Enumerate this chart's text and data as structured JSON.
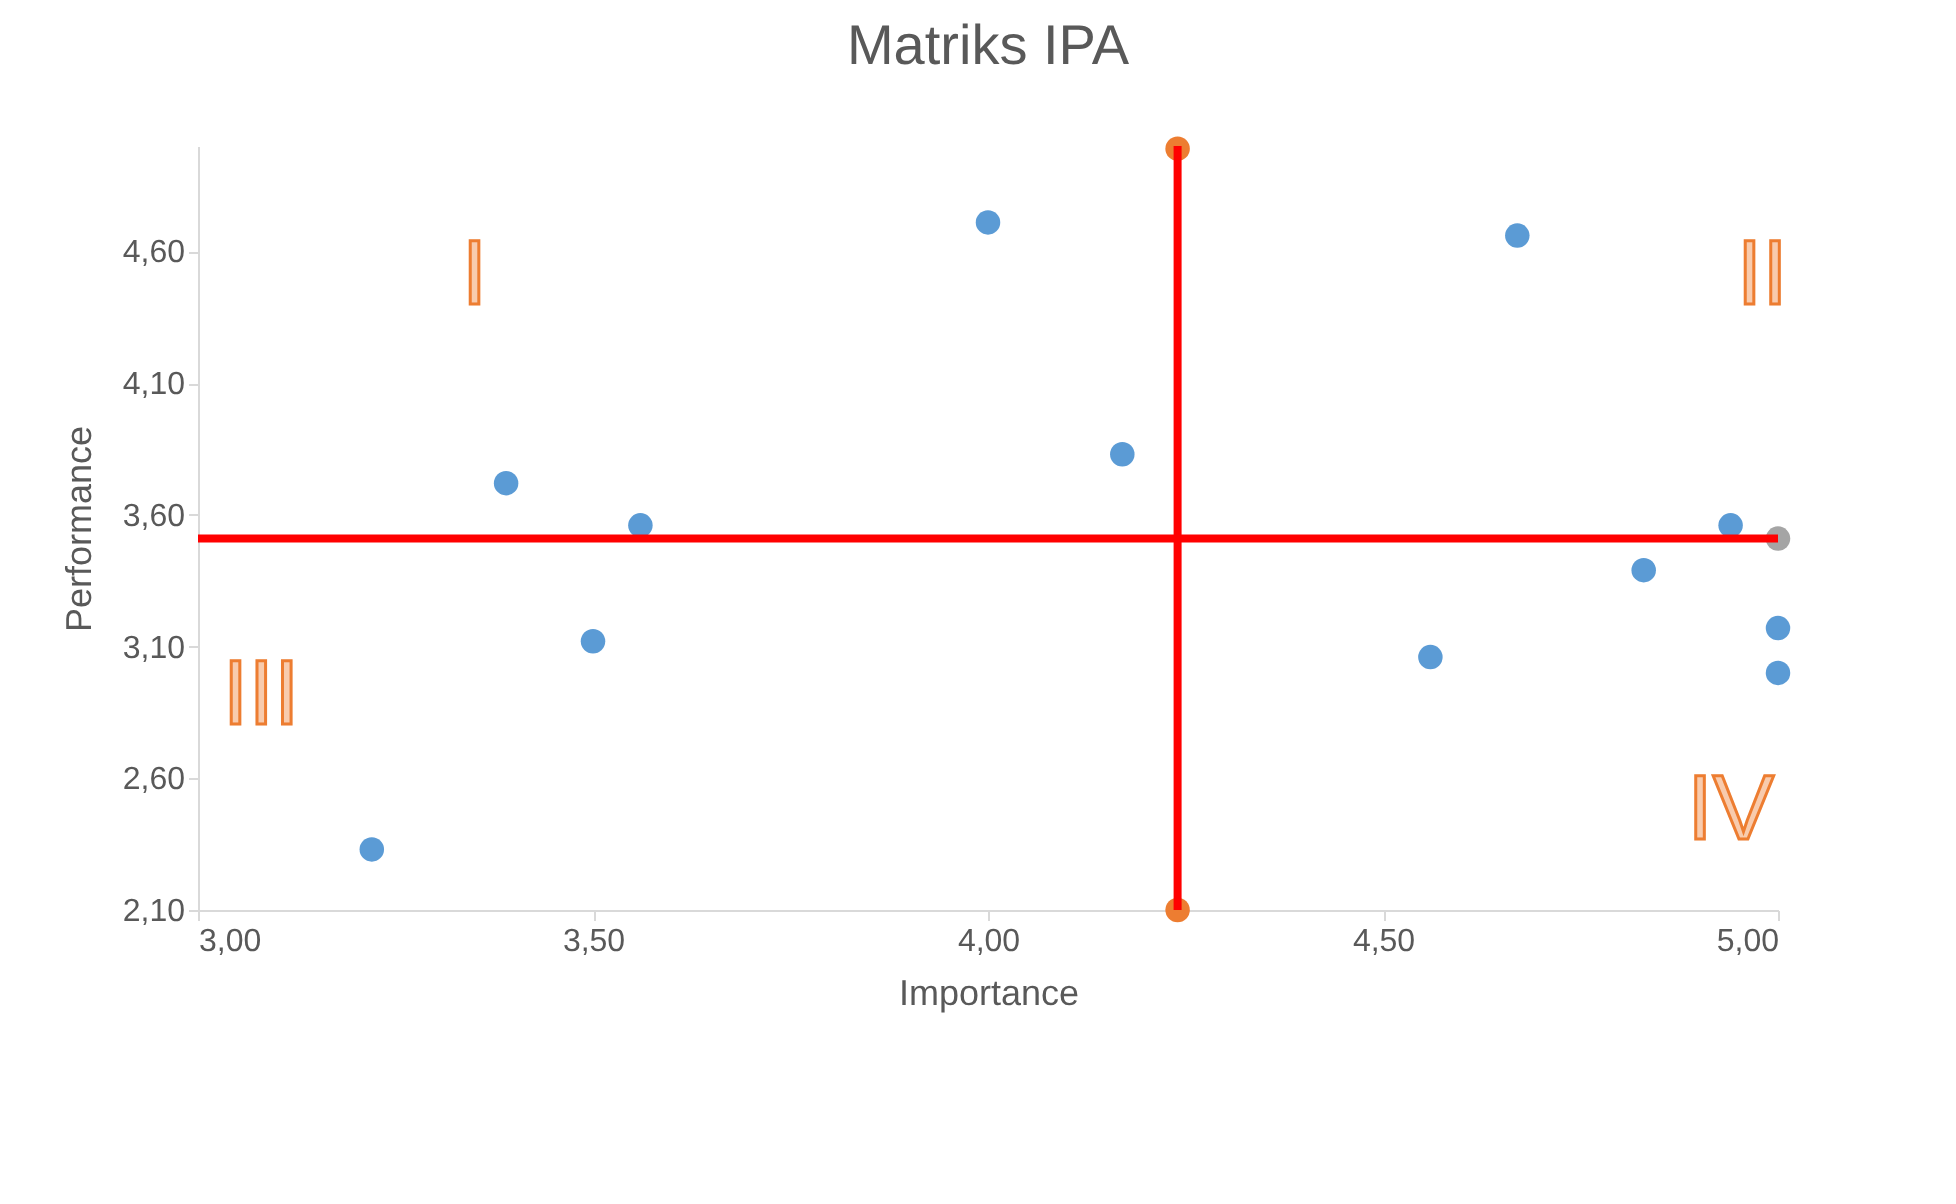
{
  "chart_data": {
    "type": "scatter",
    "title": "Matriks IPA",
    "xlabel": "Importance",
    "ylabel": "Performance",
    "xlim": [
      3.0,
      5.0
    ],
    "xticks": [
      {
        "value": 3.0,
        "label": "3,00"
      },
      {
        "value": 3.5,
        "label": "3,50"
      },
      {
        "value": 4.0,
        "label": "4,00"
      },
      {
        "value": 4.5,
        "label": "4,50"
      },
      {
        "value": 5.0,
        "label": "5,00"
      }
    ],
    "ylim": [
      2.1,
      5.0
    ],
    "yticks": [
      {
        "value": 2.1,
        "label": "2,10"
      },
      {
        "value": 2.6,
        "label": "2,60"
      },
      {
        "value": 3.1,
        "label": "3,10"
      },
      {
        "value": 3.6,
        "label": "3,60"
      },
      {
        "value": 4.1,
        "label": "4,10"
      },
      {
        "value": 4.6,
        "label": "4,60"
      }
    ],
    "grid": false,
    "marker": "circle",
    "ref_lines": [
      {
        "axis": "y",
        "value": 3.51,
        "color": "#ff0000"
      },
      {
        "axis": "x",
        "value": 4.24,
        "color": "#ff0000"
      }
    ],
    "series": [
      {
        "color": "#5b9bd5",
        "x": [
          3.22,
          3.39,
          3.5,
          3.56,
          4.0,
          4.17,
          4.56,
          4.67,
          4.83,
          4.94,
          5.0,
          5.0
        ],
        "values": [
          2.33,
          3.72,
          3.12,
          3.56,
          4.71,
          3.83,
          3.06,
          4.66,
          3.39,
          3.56,
          3.17,
          3.0
        ]
      },
      {
        "color": "#ed7d31",
        "x": [
          4.24,
          4.24
        ],
        "values": [
          2.1,
          4.99
        ]
      },
      {
        "color": "#a5a5a5",
        "x": [
          5.0
        ],
        "values": [
          3.51
        ]
      }
    ],
    "annotations": [
      "I",
      "II",
      "III",
      "IV"
    ]
  }
}
